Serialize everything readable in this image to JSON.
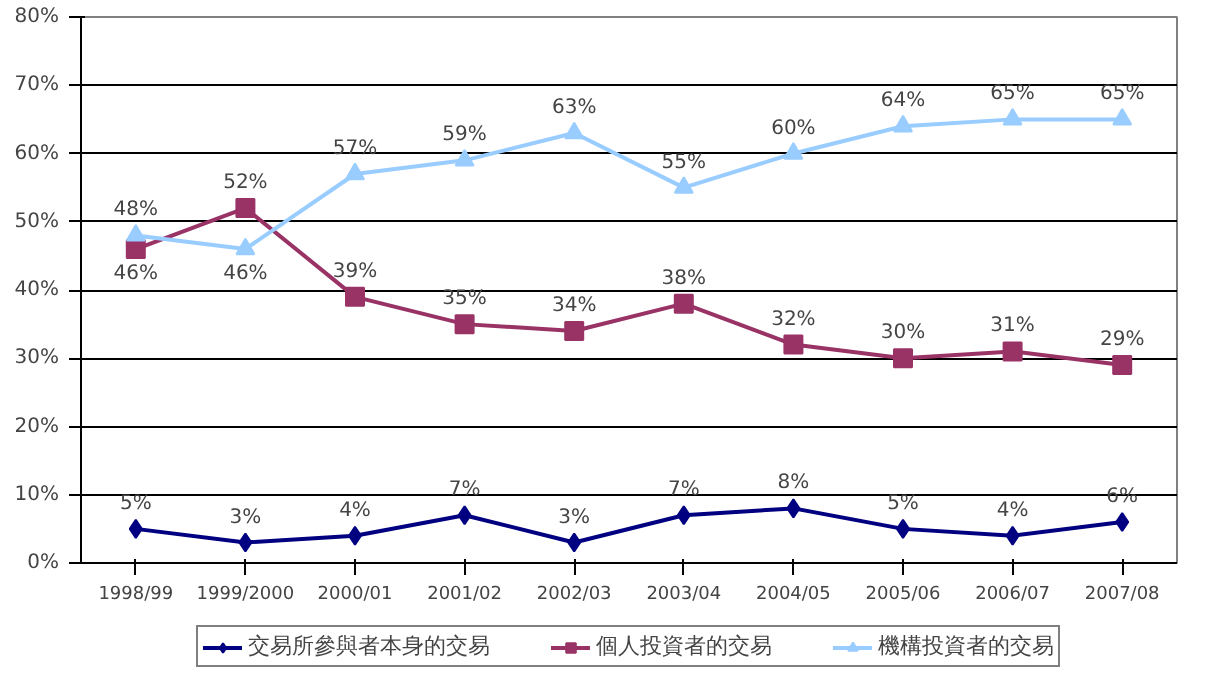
{
  "chart_data": {
    "type": "line",
    "categories": [
      "1998/99",
      "1999/2000",
      "2000/01",
      "2001/02",
      "2002/03",
      "2003/04",
      "2004/05",
      "2005/06",
      "2006/07",
      "2007/08"
    ],
    "ylim": [
      0,
      80
    ],
    "yticks": [
      {
        "value": 0,
        "label": "0%"
      },
      {
        "value": 10,
        "label": "10%"
      },
      {
        "value": 20,
        "label": "20%"
      },
      {
        "value": 30,
        "label": "30%"
      },
      {
        "value": 40,
        "label": "40%"
      },
      {
        "value": 50,
        "label": "50%"
      },
      {
        "value": 60,
        "label": "60%"
      },
      {
        "value": 70,
        "label": "70%"
      },
      {
        "value": 80,
        "label": "80%"
      }
    ],
    "grid": "y",
    "legend": "bottom",
    "line_style": "solid",
    "series": [
      {
        "name": "交易所參與者本身的交易",
        "color": "#000080",
        "marker": "diamond",
        "values": [
          5,
          3,
          4,
          7,
          3,
          7,
          8,
          5,
          4,
          6
        ],
        "value_labels": [
          "5%",
          "3%",
          "4%",
          "7%",
          "3%",
          "7%",
          "8%",
          "5%",
          "4%",
          "6%"
        ]
      },
      {
        "name": "個人投資者的交易",
        "color": "#993366",
        "marker": "square",
        "values": [
          46,
          52,
          39,
          35,
          34,
          38,
          32,
          30,
          31,
          29
        ],
        "value_labels": [
          "46%",
          "52%",
          "39%",
          "35%",
          "34%",
          "38%",
          "32%",
          "30%",
          "31%",
          "29%"
        ]
      },
      {
        "name": "機構投資者的交易",
        "color": "#99ccff",
        "marker": "triangle",
        "values": [
          48,
          46,
          57,
          59,
          63,
          55,
          60,
          64,
          65,
          65
        ],
        "value_labels": [
          "48%",
          "46%",
          "57%",
          "59%",
          "63%",
          "55%",
          "60%",
          "64%",
          "65%",
          "65%"
        ]
      }
    ]
  }
}
